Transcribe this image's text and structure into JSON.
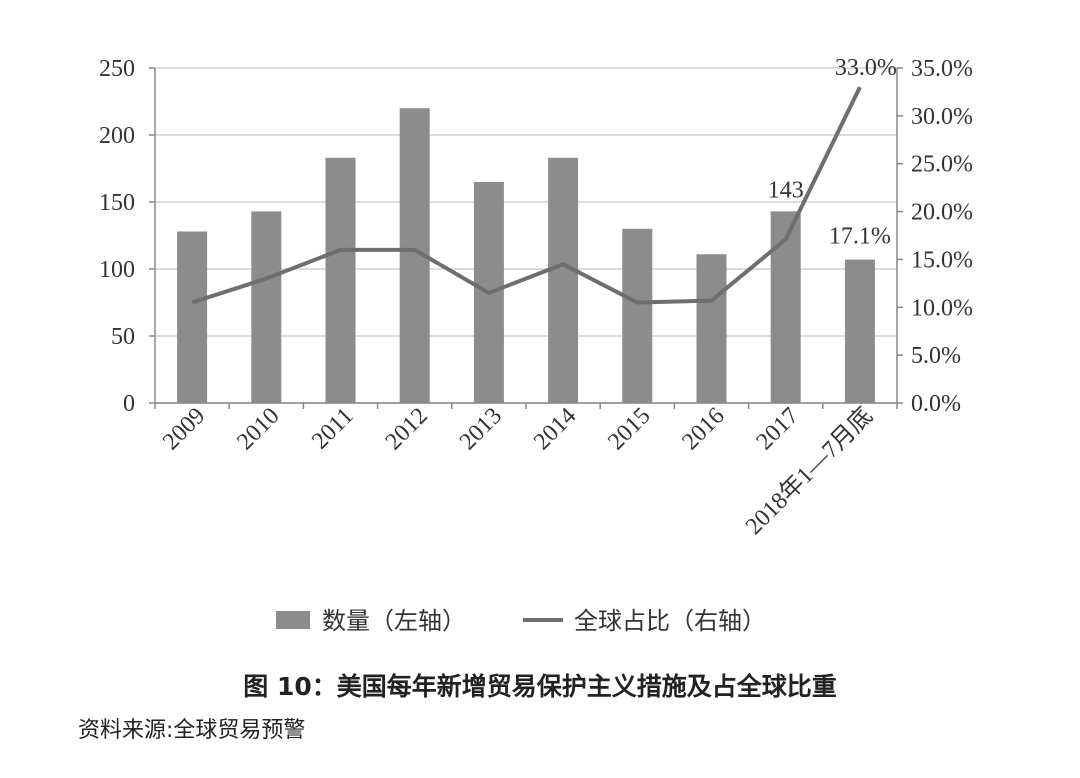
{
  "chart_data": {
    "type": "bar",
    "categories": [
      "2009",
      "2010",
      "2011",
      "2012",
      "2013",
      "2014",
      "2015",
      "2016",
      "2017",
      "2018年1—7月底"
    ],
    "series": [
      {
        "name": "数量（左轴）",
        "type": "bar",
        "axis": "left",
        "values": [
          128,
          143,
          183,
          220,
          165,
          183,
          130,
          111,
          143,
          107
        ]
      },
      {
        "name": "全球占比（右轴）",
        "type": "line",
        "axis": "right",
        "values": [
          10.5,
          13.0,
          16.0,
          16.0,
          11.5,
          14.5,
          10.5,
          10.7,
          17.1,
          33.0
        ]
      }
    ],
    "y_left": {
      "ylim": [
        0,
        250
      ],
      "ticks": [
        "0",
        "50",
        "100",
        "150",
        "200",
        "250"
      ]
    },
    "y_right": {
      "ylim": [
        0,
        35
      ],
      "ticks": [
        "0.0%",
        "5.0%",
        "10.0%",
        "15.0%",
        "20.0%",
        "25.0%",
        "30.0%",
        "35.0%"
      ]
    },
    "annotations": [
      {
        "text": "143",
        "category": "2017",
        "series": "数量（左轴）"
      },
      {
        "text": "17.1%",
        "category": "2018年1—7月底",
        "series": "数量（左轴）"
      },
      {
        "text": "33.0%",
        "category": "2018年1—7月底",
        "series": "全球占比（右轴）"
      }
    ],
    "grid": true,
    "legend_position": "bottom",
    "colors": {
      "bar": "#8c8c8c",
      "line": "#6e6e6e",
      "grid": "#d0d0d0",
      "axis": "#888888"
    }
  },
  "figure": {
    "title": "图 10：美国每年新增贸易保护主义措施及占全球比重",
    "source": "资料来源:全球贸易预警"
  }
}
